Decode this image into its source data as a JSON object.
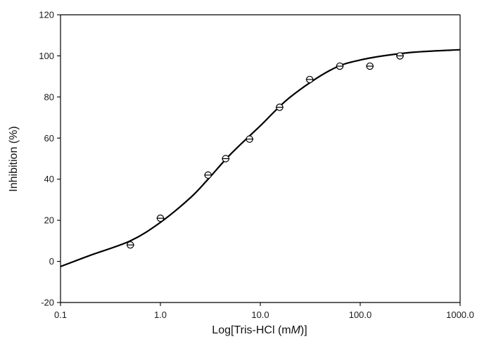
{
  "chart_data": {
    "type": "scatter",
    "title": "",
    "xlabel_prefix": "Log[Tris-HCl (m",
    "xlabel_italic": "M",
    "xlabel_suffix": ")]",
    "ylabel": "Inhibition (%)",
    "x_scale": "log",
    "xlim": [
      0.1,
      1000
    ],
    "ylim": [
      -20,
      120
    ],
    "x_ticks": [
      0.1,
      1,
      10,
      100,
      1000
    ],
    "x_tick_labels": [
      "0.1",
      "1.0",
      "10.0",
      "100.0",
      "1000.0"
    ],
    "y_ticks": [
      -20,
      0,
      20,
      40,
      60,
      80,
      100,
      120
    ],
    "y_tick_labels": [
      "-20",
      "0",
      "20",
      "40",
      "60",
      "80",
      "100",
      "120"
    ],
    "grid": false,
    "series": [
      {
        "type": "scatter",
        "marker": "open-circle",
        "error_bars": "horizontal",
        "points": [
          {
            "x": 0.5,
            "y": 8
          },
          {
            "x": 1.0,
            "y": 21
          },
          {
            "x": 3.0,
            "y": 42
          },
          {
            "x": 4.5,
            "y": 50
          },
          {
            "x": 7.8,
            "y": 59.5
          },
          {
            "x": 15.6,
            "y": 75
          },
          {
            "x": 31.2,
            "y": 88.5
          },
          {
            "x": 62.5,
            "y": 95
          },
          {
            "x": 125,
            "y": 95
          },
          {
            "x": 250,
            "y": 100
          }
        ]
      },
      {
        "type": "line",
        "style": "solid",
        "points": [
          {
            "x": 0.1,
            "y": -2.5
          },
          {
            "x": 0.2,
            "y": 3
          },
          {
            "x": 0.5,
            "y": 10
          },
          {
            "x": 1.0,
            "y": 19
          },
          {
            "x": 2.0,
            "y": 31
          },
          {
            "x": 3.0,
            "y": 40
          },
          {
            "x": 5.0,
            "y": 52
          },
          {
            "x": 10.0,
            "y": 66
          },
          {
            "x": 20.0,
            "y": 80
          },
          {
            "x": 50.0,
            "y": 93
          },
          {
            "x": 100.0,
            "y": 98
          },
          {
            "x": 300.0,
            "y": 101.5
          },
          {
            "x": 1000.0,
            "y": 103
          }
        ]
      }
    ]
  }
}
